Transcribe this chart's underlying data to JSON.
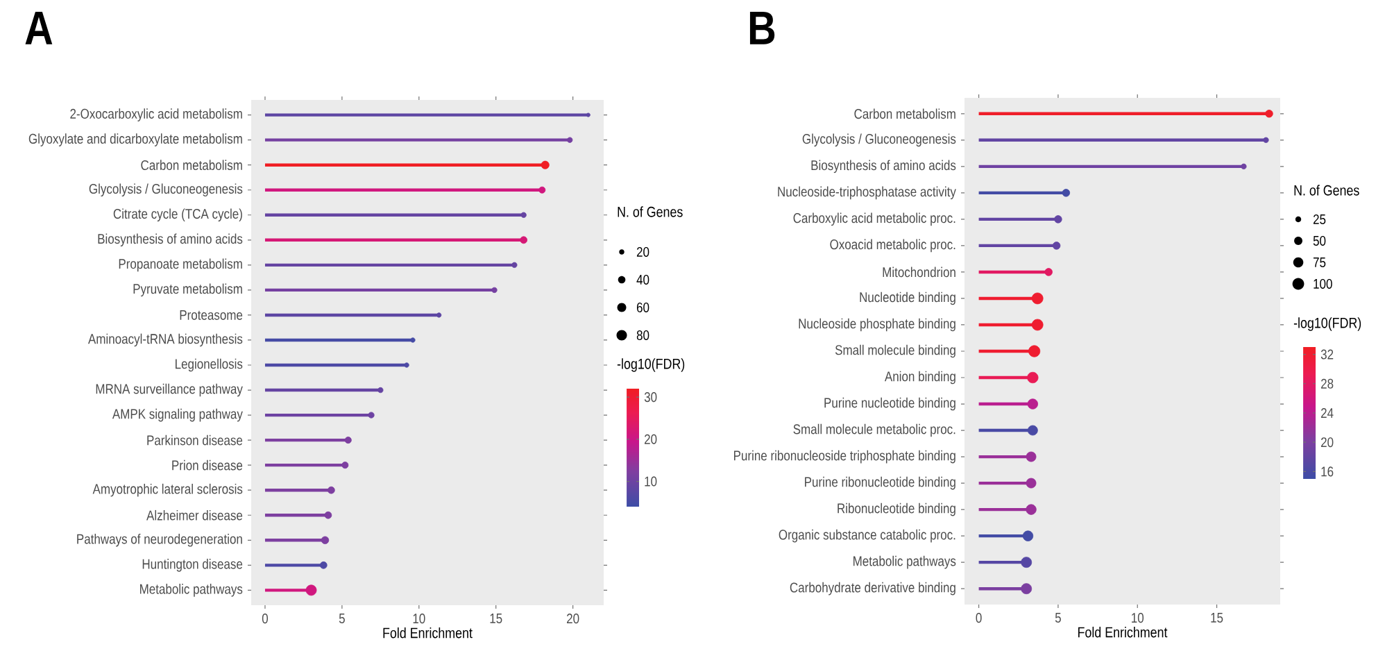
{
  "chart_data": [
    {
      "type": "lollipop",
      "title": "A",
      "orientation": "horizontal",
      "xlabel": "Fold Enrichment",
      "marker": "circle",
      "categories": [
        "2-Oxocarboxylic acid metabolism",
        "Glyoxylate and dicarboxylate metabolism",
        "Carbon metabolism",
        "Glycolysis / Gluconeogenesis",
        "Citrate cycle (TCA cycle)",
        "Biosynthesis of amino acids",
        "Propanoate metabolism",
        "Pyruvate metabolism",
        "Proteasome",
        "Aminoacyl-tRNA biosynthesis",
        "Legionellosis",
        "MRNA surveillance pathway",
        "AMPK signaling pathway",
        "Parkinson disease",
        "Prion disease",
        "Amyotrophic lateral sclerosis",
        "Alzheimer disease",
        "Pathways of neurodegeneration",
        "Huntington disease",
        "Metabolic pathways"
      ],
      "values": [
        21.0,
        19.8,
        18.2,
        18.0,
        16.8,
        16.8,
        16.2,
        14.9,
        11.3,
        9.6,
        9.2,
        7.5,
        6.9,
        5.4,
        5.2,
        4.3,
        4.1,
        3.9,
        3.8,
        3.0
      ],
      "sizes": [
        10,
        20,
        45,
        30,
        20,
        35,
        20,
        20,
        15,
        15,
        15,
        20,
        25,
        30,
        30,
        35,
        35,
        40,
        35,
        80
      ],
      "legend_title": "N. of Genes",
      "size_legend": [
        20,
        40,
        60,
        80
      ],
      "cvalues": [
        8,
        11,
        32,
        21,
        9,
        22,
        9,
        11,
        8,
        5,
        6,
        9,
        10,
        12,
        12,
        12,
        12,
        12,
        6,
        21
      ],
      "clabel": "-log10(FDR)",
      "clim": [
        4,
        32
      ],
      "cticks": [
        10,
        20,
        30
      ],
      "xlim": [
        -0.9,
        22
      ],
      "xticks": [
        0,
        5,
        10,
        15,
        20
      ]
    },
    {
      "type": "lollipop",
      "title": "B",
      "orientation": "horizontal",
      "xlabel": "Fold Enrichment",
      "marker": "circle",
      "categories": [
        "Carbon metabolism",
        "Glycolysis / Gluconeogenesis",
        "Biosynthesis of amino acids",
        "Nucleoside-triphosphatase activity",
        "Carboxylic acid metabolic proc.",
        "Oxoacid metabolic proc.",
        "Mitochondrion",
        "Nucleotide binding",
        "Nucleoside phosphate binding",
        "Small molecule binding",
        "Anion binding",
        "Purine nucleotide binding",
        "Small molecule metabolic proc.",
        "Purine ribonucleoside triphosphate binding",
        "Purine ribonucleotide binding",
        "Ribonucleotide binding",
        "Organic substance catabolic proc.",
        "Metabolic pathways",
        "Carbohydrate derivative binding"
      ],
      "values": [
        18.3,
        18.1,
        16.7,
        5.5,
        5.0,
        4.9,
        4.4,
        3.7,
        3.7,
        3.5,
        3.4,
        3.4,
        3.4,
        3.3,
        3.3,
        3.3,
        3.1,
        3.0,
        3.0
      ],
      "sizes": [
        40,
        20,
        20,
        40,
        40,
        40,
        40,
        90,
        90,
        95,
        85,
        75,
        70,
        70,
        70,
        75,
        75,
        80,
        80
      ],
      "legend_title": "N. of Genes",
      "size_legend": [
        25,
        50,
        75,
        100
      ],
      "cvalues": [
        32.5,
        18,
        19,
        15.5,
        18,
        18,
        28,
        32,
        32,
        32,
        29,
        24,
        16,
        22,
        22,
        22,
        15.5,
        17,
        20
      ],
      "clabel": "-log10(FDR)",
      "clim": [
        15,
        33
      ],
      "cticks": [
        16,
        20,
        24,
        28,
        32
      ],
      "xlim": [
        -0.9,
        19
      ],
      "xticks": [
        0,
        5,
        10,
        15
      ]
    }
  ]
}
